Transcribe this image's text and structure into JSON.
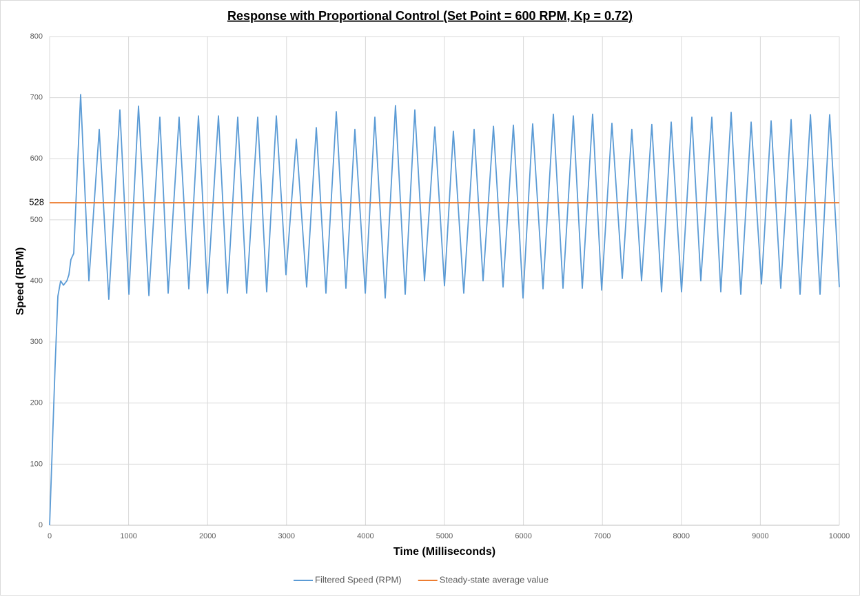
{
  "chart_data": {
    "type": "line",
    "title": "Response with Proportional  Control (Set Point = 600 RPM, Kp = 0.72)",
    "x_label": "Time (Milliseconds)",
    "y_label": "Speed (RPM)",
    "xlim": [
      0,
      10000
    ],
    "xticks": [
      0,
      1000,
      2000,
      3000,
      4000,
      5000,
      6000,
      7000,
      8000,
      9000,
      10000
    ],
    "ylim": [
      0,
      800
    ],
    "yticks": [
      0,
      100,
      200,
      300,
      400,
      500,
      600,
      700,
      800
    ],
    "grid": true,
    "legend": "bottom",
    "series": [
      {
        "name": "Filtered Speed (RPM)",
        "color": "#5b9bd5",
        "x": [
          0,
          70,
          105,
          140,
          175,
          218,
          244,
          270,
          305,
          393,
          497,
          628,
          750,
          890,
          1004,
          1126,
          1257,
          1396,
          1501,
          1640,
          1763,
          1885,
          1998,
          2138,
          2251,
          2382,
          2496,
          2635,
          2749,
          2871,
          2993,
          3124,
          3255,
          3377,
          3499,
          3630,
          3752,
          3866,
          3997,
          4119,
          4250,
          4380,
          4503,
          4625,
          4747,
          4878,
          5000,
          5113,
          5244,
          5375,
          5489,
          5620,
          5742,
          5873,
          5995,
          6117,
          6248,
          6379,
          6501,
          6632,
          6745,
          6876,
          6990,
          7120,
          7251,
          7373,
          7496,
          7626,
          7749,
          7871,
          8002,
          8133,
          8246,
          8386,
          8499,
          8630,
          8752,
          8883,
          9014,
          9136,
          9258,
          9389,
          9503,
          9634,
          9756,
          9878,
          10000
        ],
        "values": [
          0,
          262,
          375,
          400,
          393,
          400,
          410,
          435,
          445,
          705,
          400,
          648,
          370,
          680,
          378,
          686,
          376,
          668,
          380,
          668,
          387,
          670,
          380,
          670,
          380,
          668,
          380,
          668,
          382,
          670,
          410,
          632,
          390,
          651,
          380,
          677,
          388,
          648,
          380,
          668,
          372,
          687,
          378,
          680,
          400,
          652,
          392,
          645,
          380,
          648,
          400,
          653,
          390,
          655,
          372,
          657,
          387,
          673,
          388,
          670,
          388,
          673,
          385,
          658,
          404,
          648,
          400,
          656,
          382,
          660,
          382,
          668,
          400,
          668,
          382,
          676,
          378,
          660,
          395,
          662,
          388,
          664,
          378,
          672,
          378,
          672,
          390
        ]
      },
      {
        "name": "Steady-state average value",
        "color": "#ed7d31",
        "x": [
          0,
          10000
        ],
        "values": [
          528,
          528
        ]
      }
    ]
  }
}
